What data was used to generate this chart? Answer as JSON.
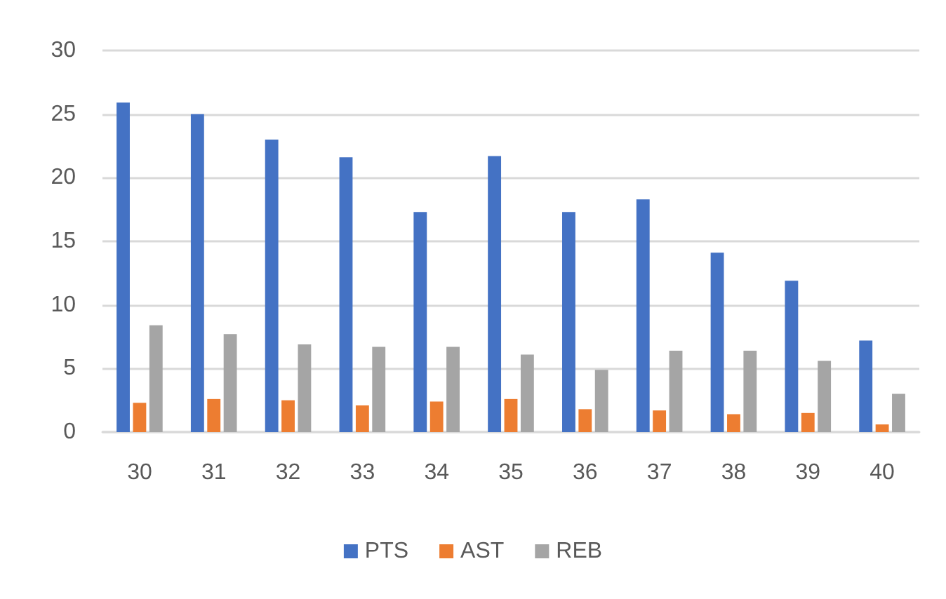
{
  "chart_data": {
    "type": "bar",
    "categories": [
      "30",
      "31",
      "32",
      "33",
      "34",
      "35",
      "36",
      "37",
      "38",
      "39",
      "40"
    ],
    "series": [
      {
        "name": "PTS",
        "color": "#4472c4",
        "values": [
          25.9,
          25.0,
          23.0,
          21.6,
          17.3,
          21.7,
          17.3,
          18.3,
          14.1,
          11.9,
          7.2
        ]
      },
      {
        "name": "AST",
        "color": "#ed7d31",
        "values": [
          2.3,
          2.6,
          2.5,
          2.1,
          2.4,
          2.6,
          1.8,
          1.7,
          1.4,
          1.5,
          0.6
        ]
      },
      {
        "name": "REB",
        "color": "#a5a5a5",
        "values": [
          8.4,
          7.7,
          6.9,
          6.7,
          6.7,
          6.1,
          4.9,
          6.4,
          6.4,
          5.6,
          3.0
        ]
      }
    ],
    "ylim": [
      0,
      30
    ],
    "yticks": [
      0,
      5,
      10,
      15,
      20,
      25,
      30
    ],
    "grid": "y",
    "legend": "bottom"
  }
}
